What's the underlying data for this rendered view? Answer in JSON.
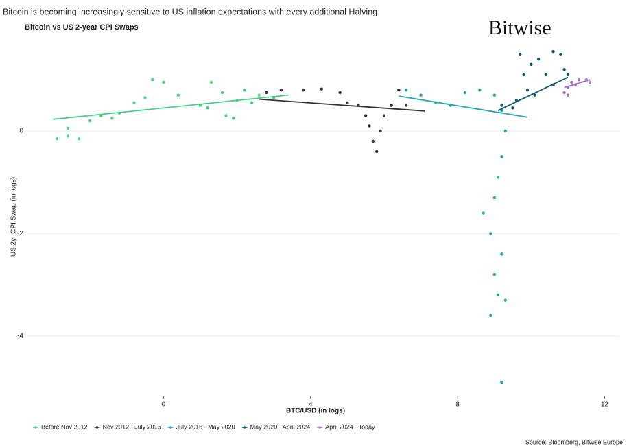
{
  "chart_data": {
    "type": "scatter",
    "title": "Bitcoin is becoming increasingly sensitive to US inflation expectations with every additional Halving",
    "subtitle": "Bitcoin vs US 2-year CPI Swaps",
    "brand": "Bitwise",
    "x_label": "BTC/USD (in logs)",
    "y_label": "US 2yr CPI Swap (in logs)",
    "source": "Source: Bloomberg, Bitwise Europe",
    "xlim": [
      -3.7,
      12.4
    ],
    "ylim": [
      -5.3,
      1.9
    ],
    "xticks": [
      0,
      4,
      8,
      12
    ],
    "yticks": [
      -4,
      -2,
      0
    ],
    "grid": true,
    "legend": "bottom",
    "series": [
      {
        "name": "Before Nov 2012",
        "color": "#45d283",
        "x": [
          -2.9,
          -2.6,
          -2.6,
          -2.3,
          -2.0,
          -1.7,
          -1.4,
          -1.2,
          -0.8,
          -0.5,
          -0.3,
          0.0,
          0.4,
          1.0,
          1.2,
          1.3,
          1.6,
          1.7,
          1.9,
          2.0,
          2.2,
          2.4,
          2.6,
          3.0
        ],
        "values": [
          -0.15,
          -0.1,
          0.05,
          -0.15,
          0.2,
          0.3,
          0.25,
          0.35,
          0.55,
          0.65,
          1.0,
          0.95,
          0.7,
          0.5,
          0.45,
          0.95,
          0.75,
          0.3,
          0.25,
          0.6,
          0.8,
          0.55,
          0.7,
          0.65
        ],
        "trend_x": [
          -3.0,
          3.4
        ],
        "trend_y": [
          0.23,
          0.7
        ]
      },
      {
        "name": "Nov 2012 - July 2016",
        "color": "#333333",
        "x": [
          2.8,
          3.2,
          3.8,
          4.3,
          4.8,
          5.0,
          5.3,
          5.5,
          5.6,
          5.7,
          5.8,
          5.9,
          6.0,
          6.2,
          6.4,
          6.6
        ],
        "values": [
          0.75,
          0.8,
          0.8,
          0.82,
          0.75,
          0.55,
          0.5,
          0.3,
          0.1,
          -0.2,
          -0.4,
          0.0,
          0.3,
          0.5,
          0.8,
          0.5
        ],
        "trend_x": [
          2.6,
          7.1
        ],
        "trend_y": [
          0.62,
          0.39
        ]
      },
      {
        "name": "July 2016 - May 2020",
        "color": "#1fa9b8",
        "x": [
          6.6,
          7.0,
          7.4,
          7.8,
          8.2,
          8.6,
          9.0,
          9.2,
          9.3,
          9.2,
          9.1,
          9.0,
          8.7,
          8.9,
          9.2,
          9.0,
          9.1,
          8.9,
          9.3,
          9.2
        ],
        "values": [
          0.8,
          0.7,
          0.55,
          0.5,
          0.75,
          0.8,
          0.7,
          0.4,
          0.0,
          -0.5,
          -0.9,
          -1.3,
          -1.6,
          -2.0,
          -2.4,
          -2.8,
          -3.2,
          -3.6,
          -3.3,
          -4.9
        ],
        "trend_x": [
          6.4,
          9.9
        ],
        "trend_y": [
          0.68,
          0.27
        ]
      },
      {
        "name": "May 2020 - April 2024",
        "color": "#0e5a6b",
        "x": [
          9.2,
          9.6,
          9.9,
          9.8,
          9.7,
          10.0,
          10.2,
          10.4,
          10.6,
          10.8,
          10.9,
          11.0,
          10.6,
          10.1,
          9.5
        ],
        "values": [
          0.5,
          0.6,
          0.8,
          1.1,
          1.5,
          1.3,
          1.4,
          1.1,
          0.9,
          1.5,
          1.2,
          1.1,
          1.55,
          0.7,
          0.45
        ],
        "trend_x": [
          9.1,
          11.0
        ],
        "trend_y": [
          0.4,
          1.05
        ]
      },
      {
        "name": "April 2024 - Today",
        "color": "#a66fd6",
        "x": [
          10.9,
          11.0,
          11.1,
          11.2,
          11.3,
          11.5,
          11.6,
          11.0
        ],
        "values": [
          0.75,
          0.85,
          0.95,
          0.9,
          1.0,
          1.0,
          0.95,
          0.7
        ],
        "trend_x": [
          10.9,
          11.6
        ],
        "trend_y": [
          0.85,
          1.0
        ]
      }
    ]
  }
}
